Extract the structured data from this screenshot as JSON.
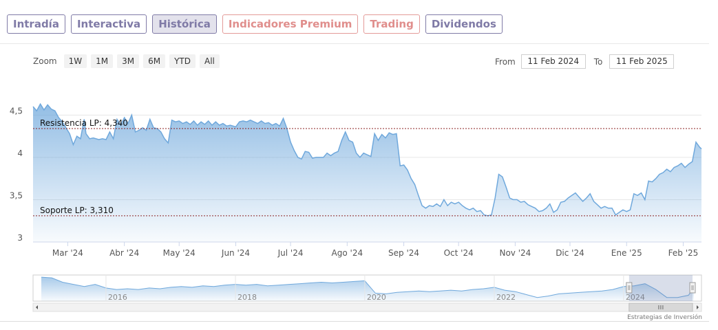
{
  "tabs": [
    {
      "label": "Intradía",
      "style": "normal"
    },
    {
      "label": "Interactiva",
      "style": "normal"
    },
    {
      "label": "Histórica",
      "style": "active"
    },
    {
      "label": "Indicadores Premium",
      "style": "premium"
    },
    {
      "label": "Trading",
      "style": "premium"
    },
    {
      "label": "Dividendos",
      "style": "normal"
    }
  ],
  "zoom": {
    "label": "Zoom",
    "buttons": [
      "1W",
      "1M",
      "3M",
      "6M",
      "YTD",
      "All"
    ]
  },
  "range": {
    "from_label": "From",
    "from_value": "11 Feb 2024",
    "to_label": "To",
    "to_value": "11 Feb 2025"
  },
  "credits": "Estrategias de Inversión",
  "colors": {
    "accent": "#7f7aa6",
    "premium": "#e08e8c",
    "series": "#6fa8dc",
    "level_line": "#8b2020"
  },
  "chart_data": {
    "type": "area",
    "x_axis": "date",
    "yticks": [
      3,
      3.5,
      4,
      4.5
    ],
    "ytick_labels": [
      "3",
      "3,5",
      "4",
      "4,5"
    ],
    "ylim": [
      3,
      4.6
    ],
    "xlim": [
      "2024-02-11",
      "2025-02-11"
    ],
    "xtick_labels": [
      {
        "date": "2024-03-01",
        "label": "Mar '24"
      },
      {
        "date": "2024-04-01",
        "label": "Abr '24"
      },
      {
        "date": "2024-05-01",
        "label": "May '24"
      },
      {
        "date": "2024-06-01",
        "label": "Jun '24"
      },
      {
        "date": "2024-07-01",
        "label": "Jul '24"
      },
      {
        "date": "2024-08-01",
        "label": "Ago '24"
      },
      {
        "date": "2024-09-01",
        "label": "Sep '24"
      },
      {
        "date": "2024-10-01",
        "label": "Oct '24"
      },
      {
        "date": "2024-11-01",
        "label": "Nov '24"
      },
      {
        "date": "2024-12-01",
        "label": "Dic '24"
      },
      {
        "date": "2025-01-01",
        "label": "Ene '25"
      },
      {
        "date": "2025-02-01",
        "label": "Feb '25"
      }
    ],
    "levels": [
      {
        "label": "Resistencia LP: 4,340",
        "value": 4.34
      },
      {
        "label": "Soporte LP: 3,310",
        "value": 3.31
      }
    ],
    "series": [
      {
        "points": [
          [
            "2024-02-11",
            4.6
          ],
          [
            "2024-02-13",
            4.55
          ],
          [
            "2024-02-15",
            4.63
          ],
          [
            "2024-02-17",
            4.56
          ],
          [
            "2024-02-19",
            4.62
          ],
          [
            "2024-02-21",
            4.57
          ],
          [
            "2024-02-23",
            4.55
          ],
          [
            "2024-02-25",
            4.47
          ],
          [
            "2024-02-27",
            4.42
          ],
          [
            "2024-02-29",
            4.35
          ],
          [
            "2024-03-02",
            4.28
          ],
          [
            "2024-03-04",
            4.15
          ],
          [
            "2024-03-06",
            4.25
          ],
          [
            "2024-03-08",
            4.22
          ],
          [
            "2024-03-10",
            4.45
          ],
          [
            "2024-03-11",
            4.28
          ],
          [
            "2024-03-13",
            4.22
          ],
          [
            "2024-03-15",
            4.23
          ],
          [
            "2024-03-18",
            4.21
          ],
          [
            "2024-03-20",
            4.22
          ],
          [
            "2024-03-22",
            4.21
          ],
          [
            "2024-03-24",
            4.3
          ],
          [
            "2024-03-26",
            4.22
          ],
          [
            "2024-03-28",
            4.45
          ],
          [
            "2024-03-30",
            4.38
          ],
          [
            "2024-04-01",
            4.47
          ],
          [
            "2024-04-03",
            4.4
          ],
          [
            "2024-04-05",
            4.5
          ],
          [
            "2024-04-07",
            4.3
          ],
          [
            "2024-04-09",
            4.32
          ],
          [
            "2024-04-11",
            4.35
          ],
          [
            "2024-04-13",
            4.32
          ],
          [
            "2024-04-15",
            4.45
          ],
          [
            "2024-04-17",
            4.35
          ],
          [
            "2024-04-19",
            4.34
          ],
          [
            "2024-04-21",
            4.3
          ],
          [
            "2024-04-23",
            4.22
          ],
          [
            "2024-04-25",
            4.17
          ],
          [
            "2024-04-27",
            4.44
          ],
          [
            "2024-04-29",
            4.42
          ],
          [
            "2024-05-01",
            4.43
          ],
          [
            "2024-05-03",
            4.4
          ],
          [
            "2024-05-05",
            4.42
          ],
          [
            "2024-05-07",
            4.39
          ],
          [
            "2024-05-09",
            4.43
          ],
          [
            "2024-05-11",
            4.38
          ],
          [
            "2024-05-13",
            4.42
          ],
          [
            "2024-05-15",
            4.39
          ],
          [
            "2024-05-17",
            4.43
          ],
          [
            "2024-05-19",
            4.38
          ],
          [
            "2024-05-21",
            4.42
          ],
          [
            "2024-05-23",
            4.38
          ],
          [
            "2024-05-25",
            4.4
          ],
          [
            "2024-05-27",
            4.37
          ],
          [
            "2024-05-29",
            4.38
          ],
          [
            "2024-06-01",
            4.36
          ],
          [
            "2024-06-03",
            4.42
          ],
          [
            "2024-06-05",
            4.43
          ],
          [
            "2024-06-07",
            4.42
          ],
          [
            "2024-06-09",
            4.44
          ],
          [
            "2024-06-11",
            4.42
          ],
          [
            "2024-06-13",
            4.4
          ],
          [
            "2024-06-15",
            4.43
          ],
          [
            "2024-06-17",
            4.4
          ],
          [
            "2024-06-19",
            4.41
          ],
          [
            "2024-06-21",
            4.38
          ],
          [
            "2024-06-23",
            4.4
          ],
          [
            "2024-06-25",
            4.37
          ],
          [
            "2024-06-27",
            4.46
          ],
          [
            "2024-06-29",
            4.34
          ],
          [
            "2024-07-01",
            4.18
          ],
          [
            "2024-07-03",
            4.08
          ],
          [
            "2024-07-05",
            4.0
          ],
          [
            "2024-07-07",
            3.98
          ],
          [
            "2024-07-09",
            4.07
          ],
          [
            "2024-07-11",
            4.06
          ],
          [
            "2024-07-13",
            3.99
          ],
          [
            "2024-07-15",
            4.0
          ],
          [
            "2024-07-17",
            4.0
          ],
          [
            "2024-07-19",
            4.0
          ],
          [
            "2024-07-21",
            4.05
          ],
          [
            "2024-07-23",
            4.02
          ],
          [
            "2024-07-25",
            4.05
          ],
          [
            "2024-07-27",
            4.07
          ],
          [
            "2024-07-29",
            4.2
          ],
          [
            "2024-07-31",
            4.3
          ],
          [
            "2024-08-02",
            4.2
          ],
          [
            "2024-08-04",
            4.18
          ],
          [
            "2024-08-06",
            4.05
          ],
          [
            "2024-08-08",
            4.0
          ],
          [
            "2024-08-10",
            4.05
          ],
          [
            "2024-08-12",
            4.03
          ],
          [
            "2024-08-14",
            4.01
          ],
          [
            "2024-08-16",
            4.28
          ],
          [
            "2024-08-18",
            4.2
          ],
          [
            "2024-08-20",
            4.27
          ],
          [
            "2024-08-22",
            4.23
          ],
          [
            "2024-08-24",
            4.29
          ],
          [
            "2024-08-26",
            4.27
          ],
          [
            "2024-08-28",
            4.28
          ],
          [
            "2024-08-30",
            3.9
          ],
          [
            "2024-09-01",
            3.91
          ],
          [
            "2024-09-03",
            3.85
          ],
          [
            "2024-09-05",
            3.75
          ],
          [
            "2024-09-07",
            3.68
          ],
          [
            "2024-09-09",
            3.55
          ],
          [
            "2024-09-11",
            3.43
          ],
          [
            "2024-09-13",
            3.4
          ],
          [
            "2024-09-15",
            3.43
          ],
          [
            "2024-09-17",
            3.42
          ],
          [
            "2024-09-19",
            3.45
          ],
          [
            "2024-09-21",
            3.42
          ],
          [
            "2024-09-23",
            3.5
          ],
          [
            "2024-09-25",
            3.43
          ],
          [
            "2024-09-27",
            3.47
          ],
          [
            "2024-09-29",
            3.45
          ],
          [
            "2024-10-01",
            3.47
          ],
          [
            "2024-10-03",
            3.43
          ],
          [
            "2024-10-05",
            3.4
          ],
          [
            "2024-10-07",
            3.38
          ],
          [
            "2024-10-09",
            3.4
          ],
          [
            "2024-10-11",
            3.36
          ],
          [
            "2024-10-13",
            3.37
          ],
          [
            "2024-10-15",
            3.32
          ],
          [
            "2024-10-17",
            3.31
          ],
          [
            "2024-10-19",
            3.32
          ],
          [
            "2024-10-21",
            3.52
          ],
          [
            "2024-10-23",
            3.8
          ],
          [
            "2024-10-25",
            3.77
          ],
          [
            "2024-10-27",
            3.65
          ],
          [
            "2024-10-29",
            3.52
          ],
          [
            "2024-10-31",
            3.5
          ],
          [
            "2024-11-02",
            3.5
          ],
          [
            "2024-11-04",
            3.47
          ],
          [
            "2024-11-06",
            3.48
          ],
          [
            "2024-11-08",
            3.44
          ],
          [
            "2024-11-10",
            3.42
          ],
          [
            "2024-11-12",
            3.4
          ],
          [
            "2024-11-14",
            3.36
          ],
          [
            "2024-11-16",
            3.37
          ],
          [
            "2024-11-18",
            3.4
          ],
          [
            "2024-11-20",
            3.45
          ],
          [
            "2024-11-22",
            3.35
          ],
          [
            "2024-11-24",
            3.38
          ],
          [
            "2024-11-26",
            3.47
          ],
          [
            "2024-11-28",
            3.48
          ],
          [
            "2024-11-30",
            3.52
          ],
          [
            "2024-12-02",
            3.55
          ],
          [
            "2024-12-04",
            3.58
          ],
          [
            "2024-12-06",
            3.53
          ],
          [
            "2024-12-08",
            3.48
          ],
          [
            "2024-12-10",
            3.52
          ],
          [
            "2024-12-12",
            3.57
          ],
          [
            "2024-12-14",
            3.48
          ],
          [
            "2024-12-16",
            3.44
          ],
          [
            "2024-12-18",
            3.4
          ],
          [
            "2024-12-20",
            3.42
          ],
          [
            "2024-12-22",
            3.4
          ],
          [
            "2024-12-24",
            3.4
          ],
          [
            "2024-12-26",
            3.32
          ],
          [
            "2024-12-28",
            3.35
          ],
          [
            "2024-12-30",
            3.38
          ],
          [
            "2025-01-01",
            3.36
          ],
          [
            "2025-01-03",
            3.38
          ],
          [
            "2025-01-05",
            3.57
          ],
          [
            "2025-01-07",
            3.55
          ],
          [
            "2025-01-09",
            3.58
          ],
          [
            "2025-01-11",
            3.5
          ],
          [
            "2025-01-13",
            3.72
          ],
          [
            "2025-01-15",
            3.71
          ],
          [
            "2025-01-17",
            3.75
          ],
          [
            "2025-01-19",
            3.8
          ],
          [
            "2025-01-21",
            3.82
          ],
          [
            "2025-01-23",
            3.86
          ],
          [
            "2025-01-25",
            3.83
          ],
          [
            "2025-01-27",
            3.88
          ],
          [
            "2025-01-29",
            3.9
          ],
          [
            "2025-01-31",
            3.93
          ],
          [
            "2025-02-02",
            3.88
          ],
          [
            "2025-02-04",
            3.92
          ],
          [
            "2025-02-06",
            3.95
          ],
          [
            "2025-02-08",
            4.18
          ],
          [
            "2025-02-10",
            4.12
          ],
          [
            "2025-02-11",
            4.1
          ]
        ]
      }
    ],
    "navigator": {
      "xtick_labels": [
        "2016",
        "2018",
        "2020",
        "2022",
        "2024"
      ],
      "points": [
        [
          "2015-01",
          4.85
        ],
        [
          "2015-03",
          4.8
        ],
        [
          "2015-05",
          4.5
        ],
        [
          "2015-07",
          4.35
        ],
        [
          "2015-09",
          4.2
        ],
        [
          "2015-11",
          4.35
        ],
        [
          "2016-01",
          4.1
        ],
        [
          "2016-03",
          4.0
        ],
        [
          "2016-05",
          4.05
        ],
        [
          "2016-07",
          4.0
        ],
        [
          "2016-09",
          4.1
        ],
        [
          "2016-11",
          4.05
        ],
        [
          "2017-01",
          4.15
        ],
        [
          "2017-03",
          4.2
        ],
        [
          "2017-05",
          4.15
        ],
        [
          "2017-07",
          4.25
        ],
        [
          "2017-09",
          4.2
        ],
        [
          "2017-11",
          4.3
        ],
        [
          "2018-01",
          4.35
        ],
        [
          "2018-03",
          4.3
        ],
        [
          "2018-05",
          4.35
        ],
        [
          "2018-07",
          4.25
        ],
        [
          "2018-09",
          4.3
        ],
        [
          "2018-11",
          4.35
        ],
        [
          "2019-01",
          4.4
        ],
        [
          "2019-03",
          4.45
        ],
        [
          "2019-05",
          4.5
        ],
        [
          "2019-07",
          4.45
        ],
        [
          "2019-09",
          4.5
        ],
        [
          "2019-11",
          4.55
        ],
        [
          "2020-01",
          4.6
        ],
        [
          "2020-03",
          3.75
        ],
        [
          "2020-05",
          3.7
        ],
        [
          "2020-07",
          3.8
        ],
        [
          "2020-09",
          3.85
        ],
        [
          "2020-11",
          3.9
        ],
        [
          "2021-01",
          3.85
        ],
        [
          "2021-03",
          3.9
        ],
        [
          "2021-05",
          3.95
        ],
        [
          "2021-07",
          3.9
        ],
        [
          "2021-09",
          4.0
        ],
        [
          "2021-11",
          4.05
        ],
        [
          "2022-01",
          4.15
        ],
        [
          "2022-03",
          3.95
        ],
        [
          "2022-05",
          3.85
        ],
        [
          "2022-07",
          3.65
        ],
        [
          "2022-09",
          3.45
        ],
        [
          "2022-11",
          3.55
        ],
        [
          "2023-01",
          3.7
        ],
        [
          "2023-03",
          3.75
        ],
        [
          "2023-05",
          3.8
        ],
        [
          "2023-07",
          3.85
        ],
        [
          "2023-09",
          3.9
        ],
        [
          "2023-11",
          4.0
        ],
        [
          "2024-01",
          4.2
        ],
        [
          "2024-03",
          4.25
        ],
        [
          "2024-05",
          4.4
        ],
        [
          "2024-07",
          4.0
        ],
        [
          "2024-09",
          3.45
        ],
        [
          "2024-11",
          3.45
        ],
        [
          "2025-01",
          3.6
        ],
        [
          "2025-02",
          4.1
        ]
      ]
    }
  }
}
